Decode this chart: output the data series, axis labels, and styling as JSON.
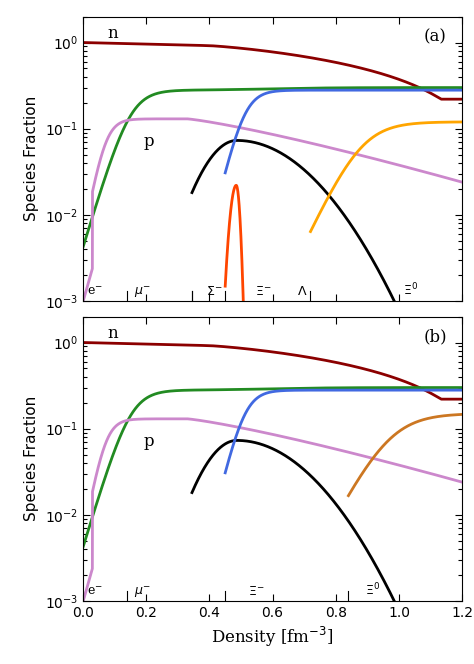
{
  "ylabel": "Species Fraction",
  "xlabel": "Density [fm$^{-3}$]",
  "xlim": [
    0.0,
    1.2
  ],
  "ylim": [
    0.001,
    2.0
  ],
  "panel_a_label": "(a)",
  "panel_b_label": "(b)",
  "lw": 2.0,
  "colors": {
    "n": "#8B0000",
    "p": "#228B22",
    "pink": "#CC88CC",
    "Lambda": "#000000",
    "Xi_minus": "#4169E1",
    "Sigma_minus": "#FF4500",
    "Xi0_a": "#FFA500",
    "Xi0_b": "#CC7722"
  }
}
